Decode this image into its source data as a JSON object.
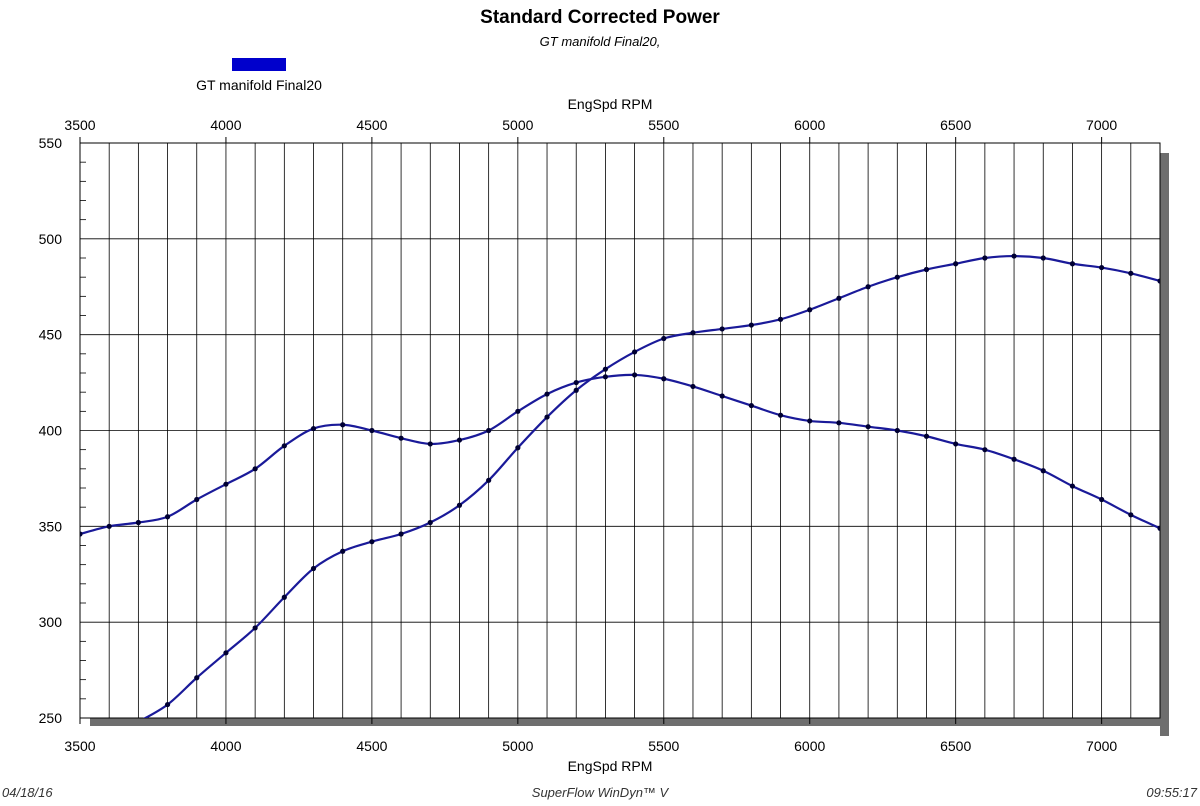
{
  "chart_data": {
    "type": "line",
    "title": "Standard Corrected Power",
    "subtitle": "GT manifold Final20,",
    "legend": {
      "label": "GT manifold Final20",
      "placement": "top-left",
      "color": "#0000cc"
    },
    "xlabel": "EngSpd RPM",
    "xlim": [
      3500,
      7200
    ],
    "ylim": [
      250,
      550
    ],
    "x_ticks": [
      "3500",
      "4000",
      "4500",
      "5000",
      "5500",
      "6000",
      "6500",
      "7000"
    ],
    "y_ticks": [
      "250",
      "300",
      "350",
      "400",
      "450",
      "500",
      "550"
    ],
    "grid": true,
    "line_color": "#1a1a99",
    "series": [
      {
        "x": [
          3500,
          3600,
          3700,
          3800,
          3900,
          4000,
          4100,
          4200,
          4300,
          4400,
          4500,
          4600,
          4700,
          4800,
          4900,
          5000,
          5100,
          5200,
          5300,
          5400,
          5500,
          5600,
          5700,
          5800,
          5900,
          6000,
          6100,
          6200,
          6300,
          6400,
          6500,
          6600,
          6700,
          6800,
          6900,
          7000,
          7100,
          7200
        ],
        "values": [
          346,
          350,
          352,
          355,
          364,
          372,
          380,
          392,
          401,
          403,
          400,
          396,
          393,
          395,
          400,
          410,
          419,
          425,
          428,
          429,
          427,
          423,
          418,
          413,
          408,
          405,
          404,
          402,
          400,
          397,
          393,
          390,
          385,
          379,
          371,
          364,
          356,
          349
        ]
      },
      {
        "x": [
          3700,
          3800,
          3900,
          4000,
          4100,
          4200,
          4300,
          4400,
          4500,
          4600,
          4700,
          4800,
          4900,
          5000,
          5100,
          5200,
          5300,
          5400,
          5500,
          5600,
          5700,
          5800,
          5900,
          6000,
          6100,
          6200,
          6300,
          6400,
          6500,
          6600,
          6700,
          6800,
          6900,
          7000,
          7100,
          7200
        ],
        "values": [
          248,
          257,
          271,
          284,
          297,
          313,
          328,
          337,
          342,
          346,
          352,
          361,
          374,
          391,
          407,
          421,
          432,
          441,
          448,
          451,
          453,
          455,
          458,
          463,
          469,
          475,
          480,
          484,
          487,
          490,
          491,
          490,
          487,
          485,
          482,
          478
        ]
      }
    ]
  },
  "footer": {
    "date": "04/18/16",
    "software": "SuperFlow WinDyn™ V",
    "time": "09:55:17"
  }
}
